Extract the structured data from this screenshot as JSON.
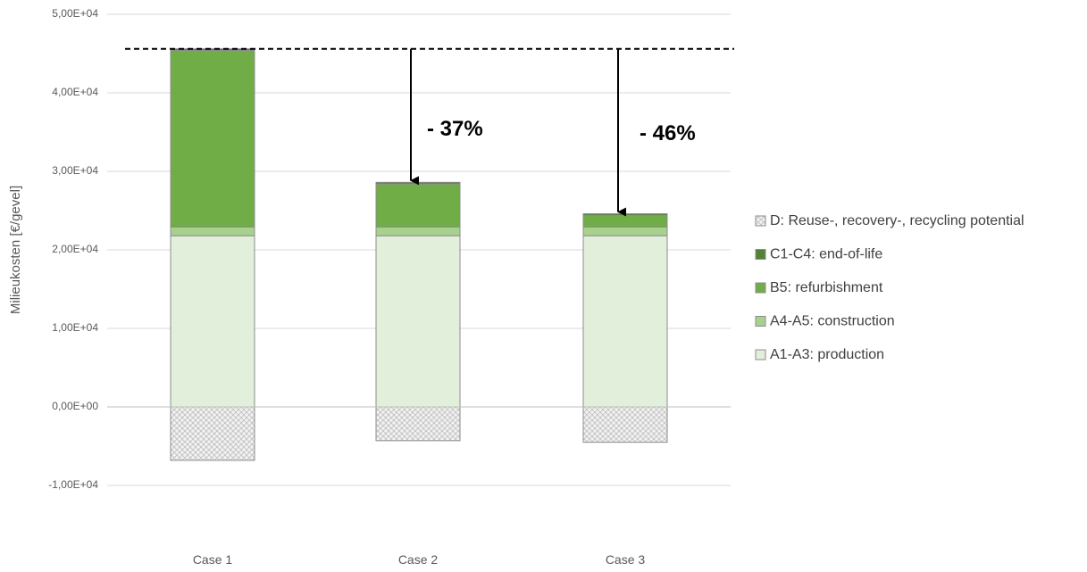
{
  "chart_data": {
    "type": "bar",
    "stacked": true,
    "categories": [
      "Case 1",
      "Case 2",
      "Case 3"
    ],
    "ylabel": "Milieukosten [€/gevel]",
    "ylim": [
      -10000,
      50000
    ],
    "yticks": [
      -10000,
      0,
      10000,
      20000,
      30000,
      40000,
      50000
    ],
    "ytick_labels": [
      "-1,00E+04",
      "0,00E+00",
      "1,00E+04",
      "2,00E+04",
      "3,00E+04",
      "4,00E+04",
      "5,00E+04"
    ],
    "grid": true,
    "legend_position": "right",
    "series": [
      {
        "name": "A1-A3: production",
        "color": "#e2efda",
        "values": [
          21800,
          21800,
          21800
        ]
      },
      {
        "name": "A4-A5: construction",
        "color": "#a9d18e",
        "values": [
          1100,
          1100,
          1100
        ]
      },
      {
        "name": "B5: refurbishment",
        "color": "#70ad47",
        "values": [
          22500,
          5500,
          1500
        ]
      },
      {
        "name": "C1-C4: end-of-life",
        "color": "#548235",
        "values": [
          200,
          200,
          200
        ]
      },
      {
        "name": "D: Reuse-, recovery-, recycling potential",
        "color": "#d9d9d9",
        "pattern": "crosshatch",
        "values": [
          -6800,
          -4300,
          -4500
        ]
      }
    ],
    "reference_line": {
      "value": 45600,
      "style": "dashed"
    },
    "annotations": [
      {
        "category": "Case 2",
        "text": "- 37%"
      },
      {
        "category": "Case 3",
        "text": "- 46%"
      }
    ]
  }
}
